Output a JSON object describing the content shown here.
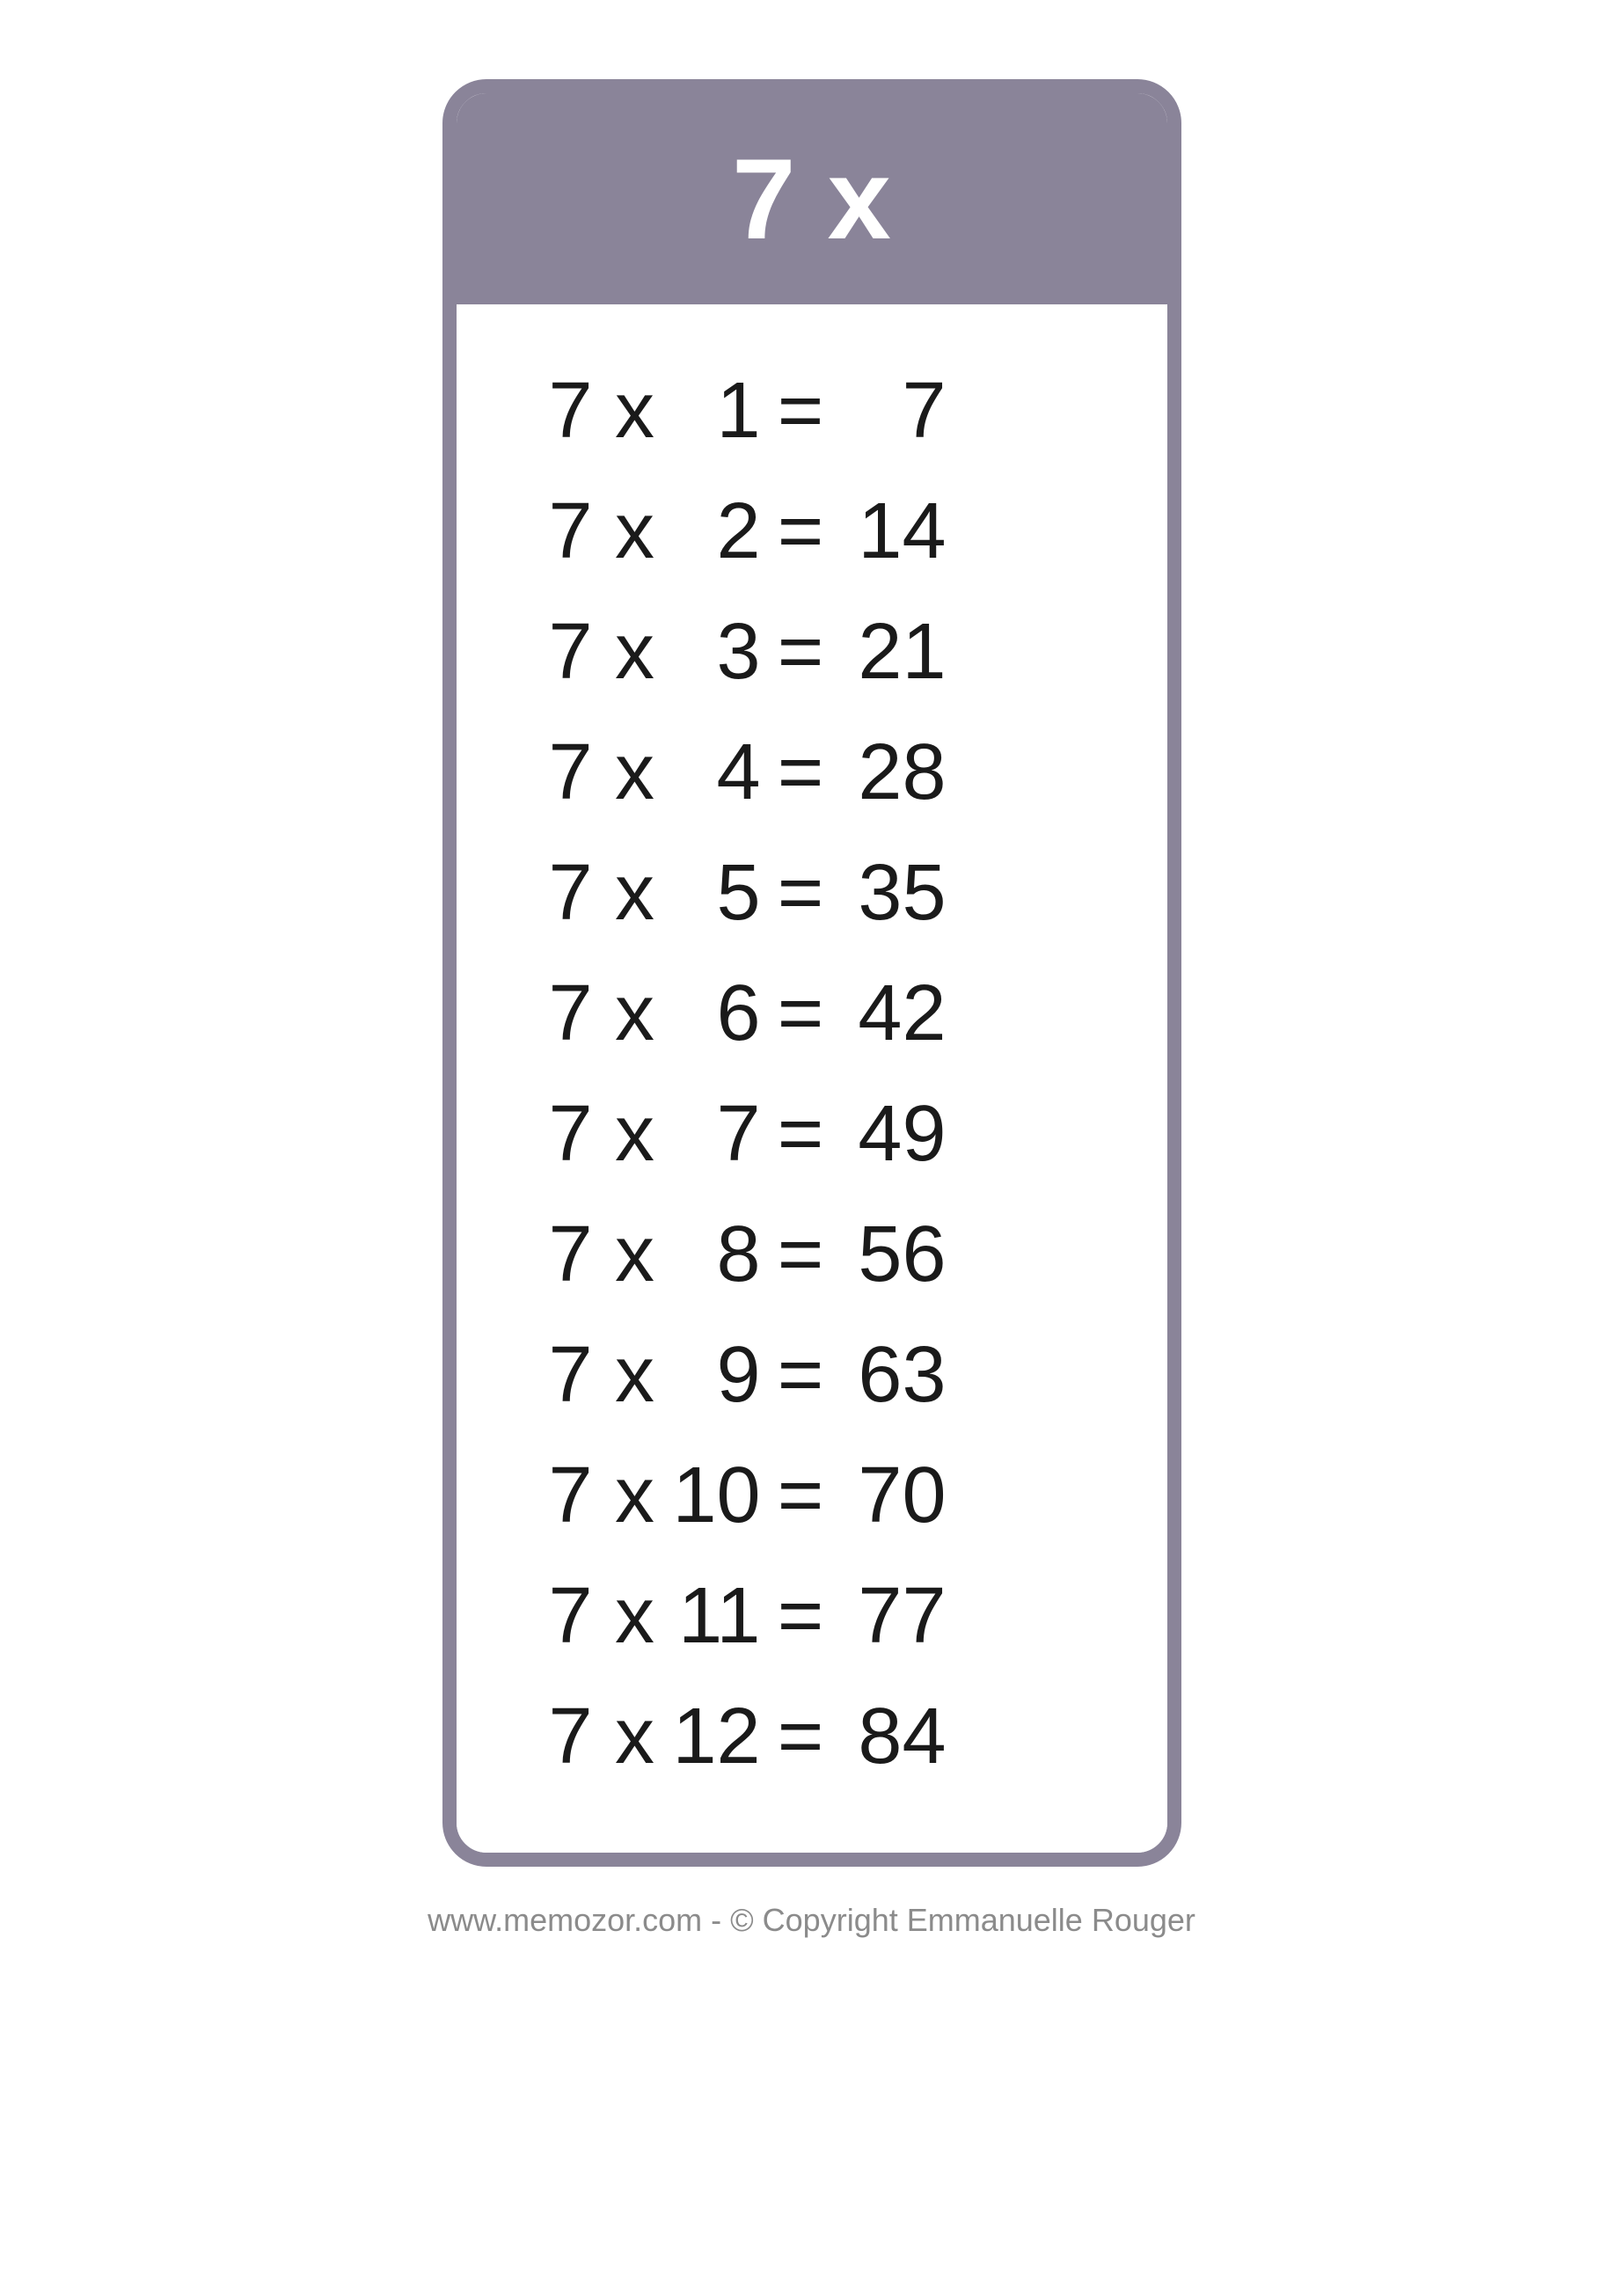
{
  "card": {
    "header_text": "7 x",
    "border_color": "#8a8499",
    "header_bg": "#8a8499",
    "header_text_color": "#ffffff",
    "header_fontsize": 130,
    "body_bg": "#ffffff",
    "body_fontsize": 90,
    "body_text_color": "#1a1a1a",
    "border_radius": 50,
    "border_width": 16
  },
  "rows": [
    {
      "a": "7",
      "op": "x",
      "b": "1",
      "eq": "=",
      "r": "7"
    },
    {
      "a": "7",
      "op": "x",
      "b": "2",
      "eq": "=",
      "r": "14"
    },
    {
      "a": "7",
      "op": "x",
      "b": "3",
      "eq": "=",
      "r": "21"
    },
    {
      "a": "7",
      "op": "x",
      "b": "4",
      "eq": "=",
      "r": "28"
    },
    {
      "a": "7",
      "op": "x",
      "b": "5",
      "eq": "=",
      "r": "35"
    },
    {
      "a": "7",
      "op": "x",
      "b": "6",
      "eq": "=",
      "r": "42"
    },
    {
      "a": "7",
      "op": "x",
      "b": "7",
      "eq": "=",
      "r": "49"
    },
    {
      "a": "7",
      "op": "x",
      "b": "8",
      "eq": "=",
      "r": "56"
    },
    {
      "a": "7",
      "op": "x",
      "b": "9",
      "eq": "=",
      "r": "63"
    },
    {
      "a": "7",
      "op": "x",
      "b": "10",
      "eq": "=",
      "r": "70"
    },
    {
      "a": "7",
      "op": "x",
      "b": "11",
      "eq": "=",
      "r": "77"
    },
    {
      "a": "7",
      "op": "x",
      "b": "12",
      "eq": "=",
      "r": "84"
    }
  ],
  "footer": {
    "text": "www.memozor.com - © Copyright Emmanuelle Rouger",
    "color": "#8b8b8b",
    "fontsize": 36
  }
}
